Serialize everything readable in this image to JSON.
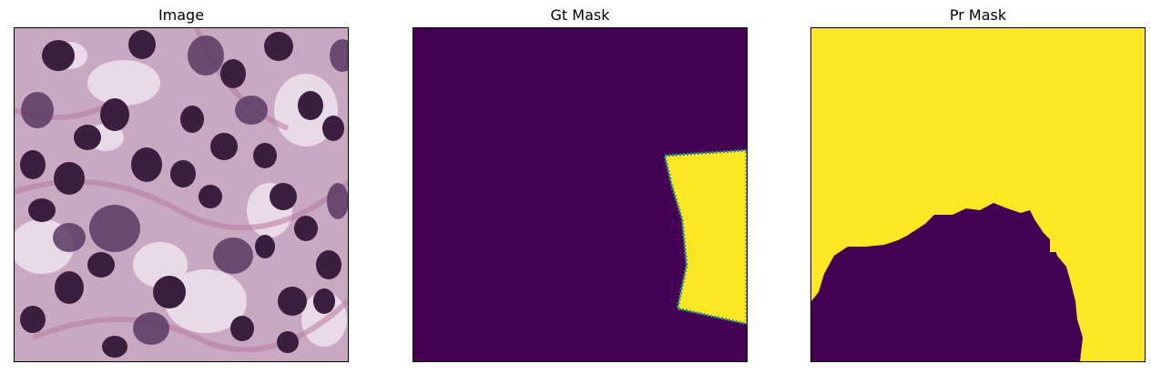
{
  "panels": [
    {
      "title": "Image"
    },
    {
      "title": "Gt Mask"
    },
    {
      "title": "Pr Mask"
    }
  ],
  "colors": {
    "mask_background": "#440154",
    "mask_foreground": "#fde725",
    "mask_edge": "#21918c",
    "tissue_base": "#c9a9c2",
    "tissue_light": "#efe3ee",
    "nucleus_dark": "#3b1f3f",
    "nucleus_mid": "#5a3a62"
  }
}
